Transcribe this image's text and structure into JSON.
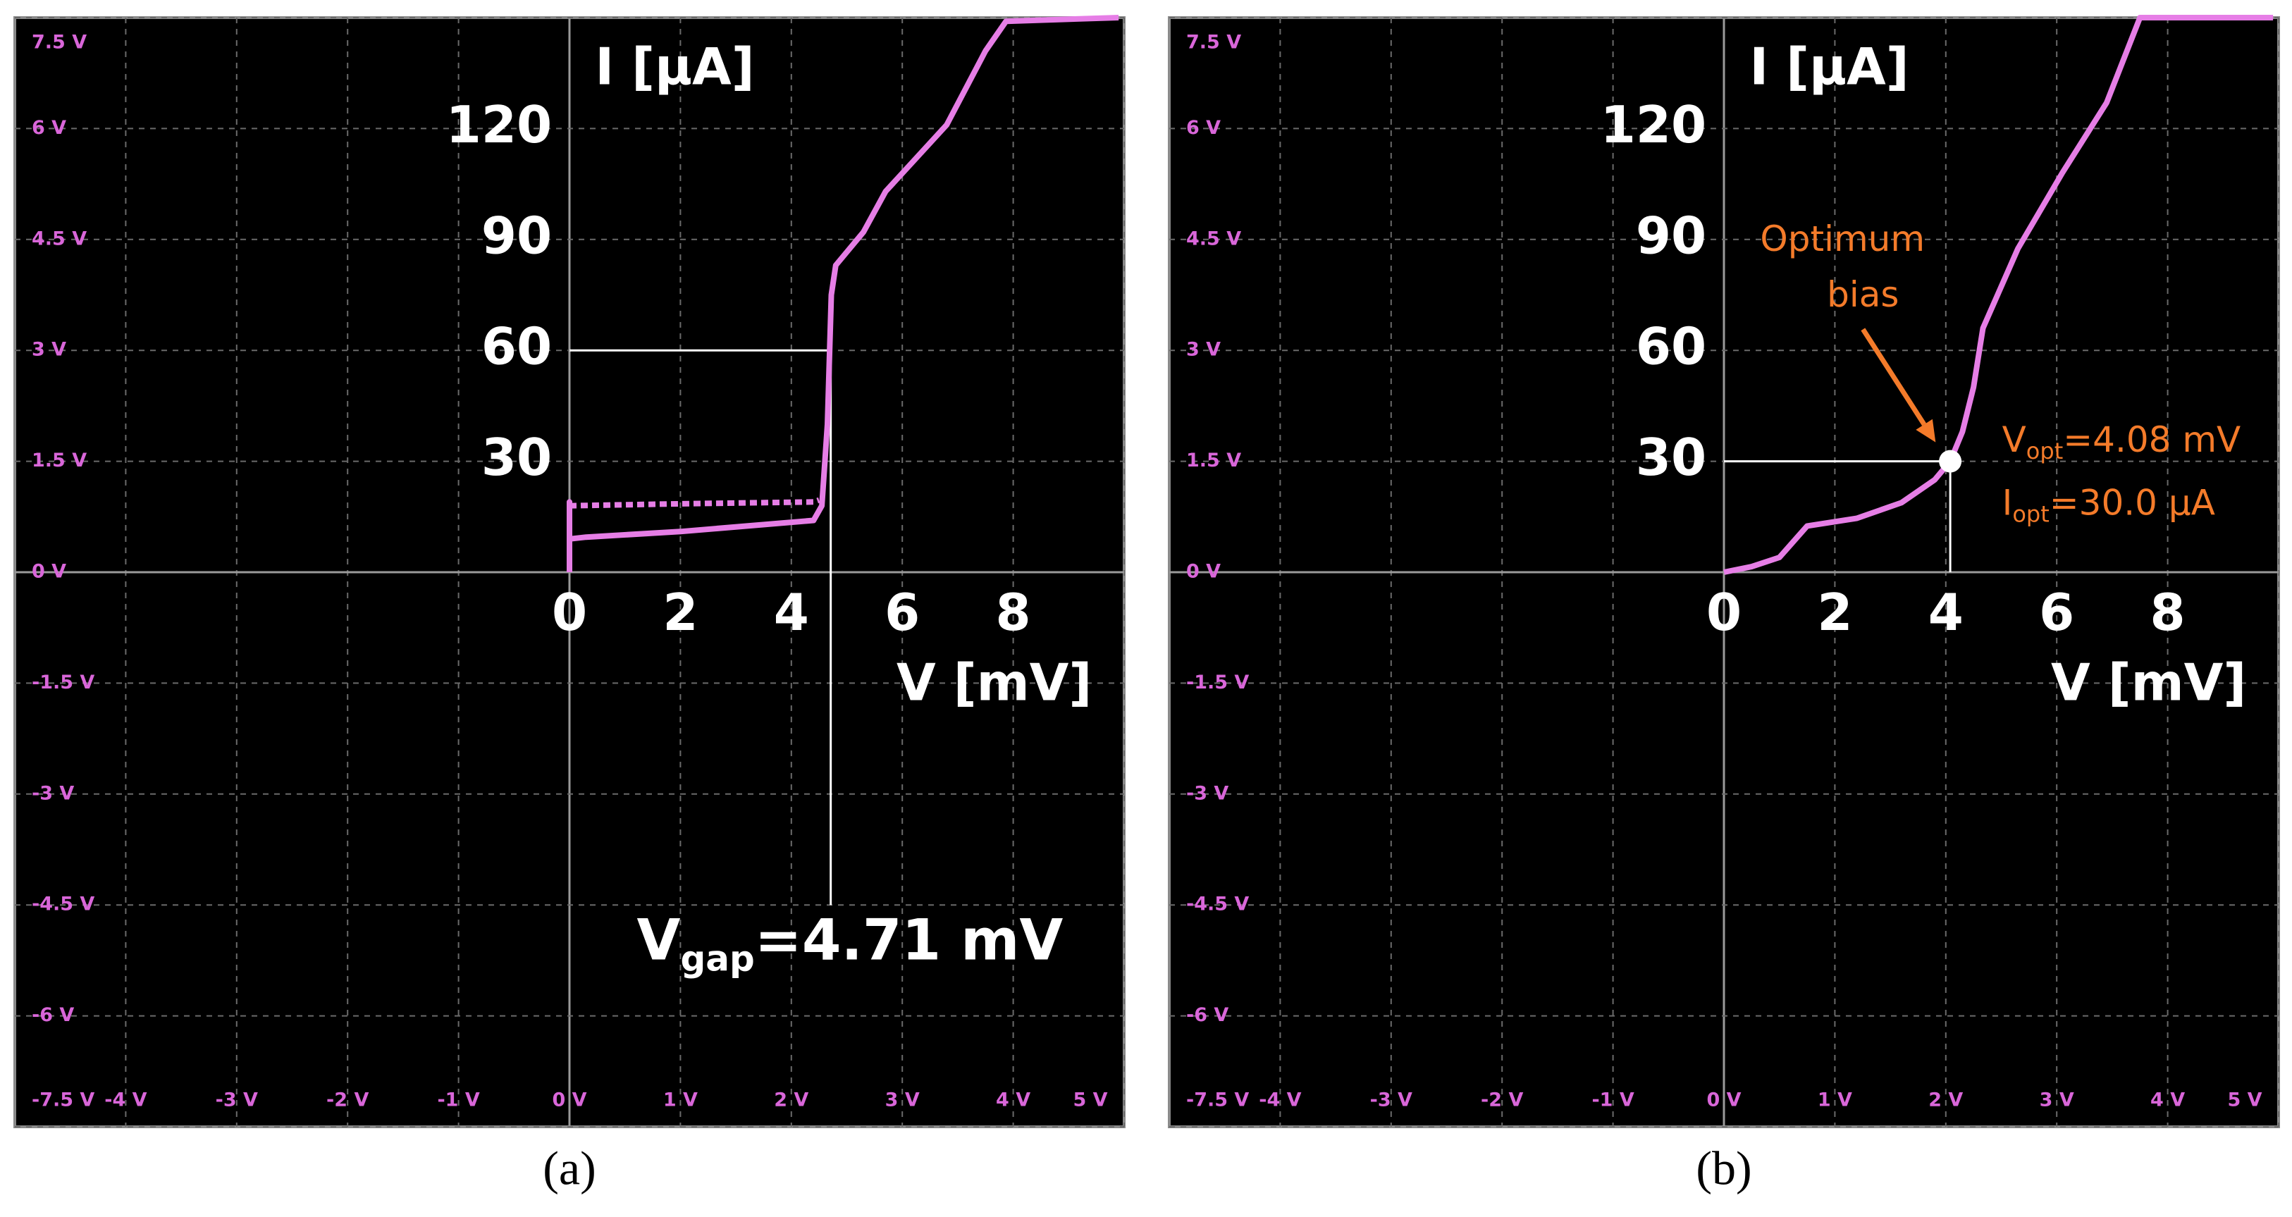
{
  "chart_data": [
    {
      "type": "line",
      "caption": "(a)",
      "xlim": [
        -5,
        5
      ],
      "ylim": [
        -7.5,
        7.5
      ],
      "xticks": [
        {
          "value": -4,
          "label": "-4 V"
        },
        {
          "value": -3,
          "label": "-3 V"
        },
        {
          "value": -2,
          "label": "-2 V"
        },
        {
          "value": -1,
          "label": "-1 V"
        },
        {
          "value": 0,
          "label": "0 V"
        },
        {
          "value": 1,
          "label": "1 V"
        },
        {
          "value": 2,
          "label": "2 V"
        },
        {
          "value": 3,
          "label": "3 V"
        },
        {
          "value": 4,
          "label": "4 V"
        },
        {
          "value": 5,
          "label": "5 V"
        }
      ],
      "yticks": [
        {
          "value": 7.5,
          "label": "7.5 V"
        },
        {
          "value": 6,
          "label": "6 V"
        },
        {
          "value": 4.5,
          "label": "4.5 V"
        },
        {
          "value": 3,
          "label": "3 V"
        },
        {
          "value": 1.5,
          "label": "1.5 V"
        },
        {
          "value": 0,
          "label": "0 V"
        },
        {
          "value": -1.5,
          "label": "-1.5 V"
        },
        {
          "value": -3,
          "label": "-3 V"
        },
        {
          "value": -4.5,
          "label": "-4.5 V"
        },
        {
          "value": -6,
          "label": "-6 V"
        },
        {
          "value": -7.5,
          "label": "-7.5 V"
        }
      ],
      "grid": true,
      "tick_color": "#d966d9",
      "x2lim": [
        -10,
        10
      ],
      "y2lim": [
        -150,
        150
      ],
      "x2ticks": [
        0,
        2,
        4,
        6,
        8
      ],
      "y2ticks": [
        30,
        60,
        90,
        120
      ],
      "x2label": "V [mV]",
      "y2label": "I [µA]",
      "series": [
        {
          "color": "#e67ee6",
          "axis": "y2",
          "x": [
            0,
            0,
            0,
            0.3,
            2,
            4.4,
            4.55,
            4.65,
            4.72,
            4.8,
            5.3,
            5.7,
            6.8,
            7.5,
            7.87,
            9.9
          ],
          "values": [
            0,
            19,
            9,
            9.5,
            11,
            14,
            18,
            40,
            75,
            83,
            92,
            103,
            121,
            141,
            149,
            150
          ]
        },
        {
          "color": "#e67ee6",
          "axis": "y2",
          "dashed": true,
          "x": [
            0,
            0.05,
            2,
            4.4,
            4.5
          ],
          "values": [
            18,
            18,
            18.5,
            19,
            19.5
          ]
        }
      ],
      "guides": [
        {
          "x": [
            0,
            4.71
          ],
          "values": [
            60,
            60
          ]
        },
        {
          "x": [
            4.71,
            4.71
          ],
          "values": [
            60,
            -90
          ]
        }
      ],
      "annotations": [
        {
          "parts": [
            "V",
            "gap",
            "=4.71 mV"
          ],
          "color": "#ffffff"
        }
      ]
    },
    {
      "type": "line",
      "caption": "(b)",
      "xlim": [
        -5,
        5
      ],
      "ylim": [
        -7.5,
        7.5
      ],
      "xticks": [
        {
          "value": -4,
          "label": "-4 V"
        },
        {
          "value": -3,
          "label": "-3 V"
        },
        {
          "value": -2,
          "label": "-2 V"
        },
        {
          "value": -1,
          "label": "-1 V"
        },
        {
          "value": 0,
          "label": "0 V"
        },
        {
          "value": 1,
          "label": "1 V"
        },
        {
          "value": 2,
          "label": "2 V"
        },
        {
          "value": 3,
          "label": "3 V"
        },
        {
          "value": 4,
          "label": "4 V"
        },
        {
          "value": 5,
          "label": "5 V"
        }
      ],
      "yticks": [
        {
          "value": 7.5,
          "label": "7.5 V"
        },
        {
          "value": 6,
          "label": "6 V"
        },
        {
          "value": 4.5,
          "label": "4.5 V"
        },
        {
          "value": 3,
          "label": "3 V"
        },
        {
          "value": 1.5,
          "label": "1.5 V"
        },
        {
          "value": 0,
          "label": "0 V"
        },
        {
          "value": -1.5,
          "label": "-1.5 V"
        },
        {
          "value": -3,
          "label": "-3 V"
        },
        {
          "value": -4.5,
          "label": "-4.5 V"
        },
        {
          "value": -6,
          "label": "-6 V"
        },
        {
          "value": -7.5,
          "label": "-7.5 V"
        }
      ],
      "grid": true,
      "tick_color": "#d966d9",
      "x2lim": [
        -10,
        10
      ],
      "y2lim": [
        -150,
        150
      ],
      "x2ticks": [
        0,
        2,
        4,
        6,
        8
      ],
      "y2ticks": [
        30,
        60,
        90,
        120
      ],
      "x2label": "V [mV]",
      "y2label": "I [µA]",
      "series": [
        {
          "color": "#e67ee6",
          "axis": "y2",
          "x": [
            0,
            0.5,
            1.0,
            1.5,
            2.4,
            3.2,
            3.8,
            4.08,
            4.3,
            4.5,
            4.67,
            5.3,
            6.1,
            6.9,
            7.5,
            9.9
          ],
          "values": [
            0,
            1.5,
            4,
            12.5,
            14.6,
            18.8,
            25,
            30,
            38,
            50,
            66,
            87.5,
            108,
            127,
            150,
            150
          ]
        }
      ],
      "guides": [
        {
          "x": [
            0,
            4.08
          ],
          "values": [
            30,
            30
          ]
        },
        {
          "x": [
            4.08,
            4.08
          ],
          "values": [
            30,
            0
          ]
        }
      ],
      "point": {
        "x": 4.08,
        "value": 30,
        "color": "#ffffff"
      },
      "annotations": [
        {
          "lines": [
            "Optimum",
            "bias"
          ],
          "color": "#f47b2a"
        },
        {
          "parts": [
            "V",
            "opt",
            "=4.08 mV"
          ],
          "color": "#f47b2a"
        },
        {
          "parts": [
            "I",
            "opt",
            "=30.0 µA"
          ],
          "color": "#f47b2a"
        }
      ]
    }
  ]
}
